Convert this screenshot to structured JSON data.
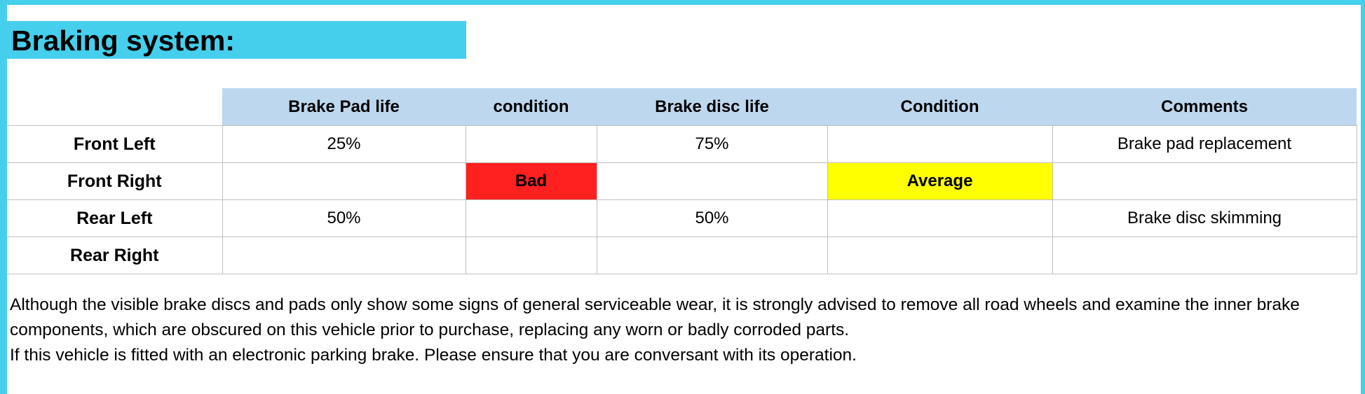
{
  "title": "Braking system:",
  "table": {
    "headers": [
      "",
      "Brake Pad life",
      "condition",
      "Brake disc life",
      "Condition",
      "Comments"
    ],
    "rows": [
      {
        "label": "Front Left",
        "pad_life": "25%",
        "pad_condition": "",
        "disc_life": "75%",
        "disc_condition": "",
        "comments": "Brake pad replacement"
      },
      {
        "label": "Front Right",
        "pad_life": "",
        "pad_condition": "Bad",
        "disc_life": "",
        "disc_condition": "Average",
        "comments": ""
      },
      {
        "label": "Rear Left",
        "pad_life": "50%",
        "pad_condition": "",
        "disc_life": "50%",
        "disc_condition": "",
        "comments": "Brake disc skimming"
      },
      {
        "label": "Rear Right",
        "pad_life": "",
        "pad_condition": "",
        "disc_life": "",
        "disc_condition": "",
        "comments": ""
      }
    ]
  },
  "notes": [
    "Although the visible brake discs and pads only show some signs of general serviceable wear, it is strongly advised to remove all road wheels and examine the inner brake components, which are obscured on this vehicle prior to purchase, replacing any worn or badly corroded parts.",
    "If this vehicle is fitted with an electronic parking brake. Please ensure that you are conversant with its operation."
  ],
  "colors": {
    "accent": "#45cfec",
    "header_fill": "#bdd7ee",
    "header_text": "#1f3864",
    "bad": "#ff2020",
    "average": "#ffff00"
  }
}
